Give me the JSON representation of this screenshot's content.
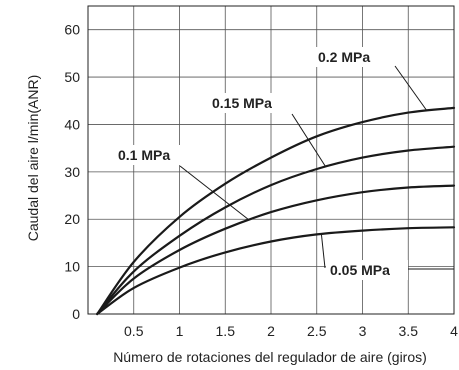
{
  "chart_data": {
    "type": "line",
    "title": "",
    "xlabel": "Número de rotaciones del regulador de aire (giros)",
    "ylabel": "Caudal del aire l/min(ANR)",
    "xlim": [
      0,
      4
    ],
    "ylim": [
      0,
      65
    ],
    "x_ticks": [
      "0.5",
      "1",
      "1.5",
      "2",
      "2.5",
      "3",
      "3.5",
      "4"
    ],
    "y_ticks": [
      "0",
      "10",
      "20",
      "30",
      "40",
      "50",
      "60"
    ],
    "grid": true,
    "legend": "inline labels with leader lines",
    "series": [
      {
        "name": "0.2 MPa",
        "points": [
          [
            0.1,
            0
          ],
          [
            0.5,
            11
          ],
          [
            1,
            20.5
          ],
          [
            1.5,
            27.5
          ],
          [
            2,
            33
          ],
          [
            2.5,
            37.5
          ],
          [
            3,
            40.5
          ],
          [
            3.5,
            42.5
          ],
          [
            4,
            43.5
          ]
        ]
      },
      {
        "name": "0.15 MPa",
        "points": [
          [
            0.1,
            0
          ],
          [
            0.5,
            9
          ],
          [
            1,
            16.5
          ],
          [
            1.5,
            22.5
          ],
          [
            2,
            27.2
          ],
          [
            2.5,
            30.6
          ],
          [
            3,
            33
          ],
          [
            3.5,
            34.5
          ],
          [
            4,
            35.3
          ]
        ]
      },
      {
        "name": "0.1 MPa",
        "points": [
          [
            0.1,
            0
          ],
          [
            0.5,
            7.5
          ],
          [
            1,
            13.5
          ],
          [
            1.5,
            18
          ],
          [
            2,
            21.5
          ],
          [
            2.5,
            24
          ],
          [
            3,
            25.7
          ],
          [
            3.5,
            26.7
          ],
          [
            4,
            27.1
          ]
        ]
      },
      {
        "name": "0.05 MPa",
        "points": [
          [
            0.1,
            0
          ],
          [
            0.5,
            5.5
          ],
          [
            1,
            9.8
          ],
          [
            1.5,
            13
          ],
          [
            2,
            15.3
          ],
          [
            2.5,
            16.8
          ],
          [
            3,
            17.6
          ],
          [
            3.5,
            18.1
          ],
          [
            4,
            18.3
          ]
        ]
      }
    ]
  }
}
